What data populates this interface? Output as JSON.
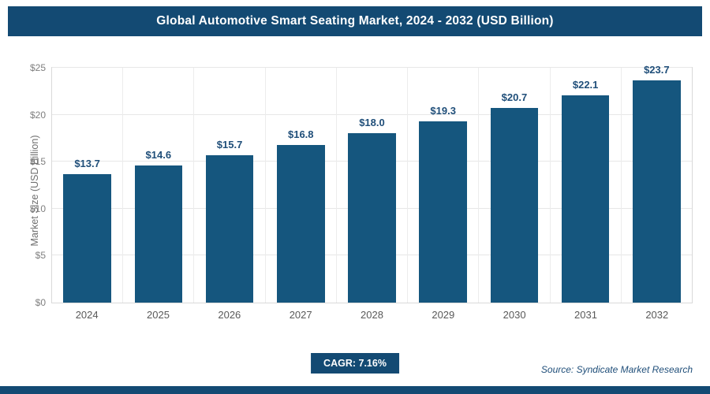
{
  "header": {
    "title": "Global Automotive Smart Seating Market, 2024 - 2032 (USD Billion)"
  },
  "chart_data": {
    "type": "bar",
    "title": "Global Automotive Smart Seating Market, 2024 - 2032 (USD Billion)",
    "categories": [
      "2024",
      "2025",
      "2026",
      "2027",
      "2028",
      "2029",
      "2030",
      "2031",
      "2032"
    ],
    "values": [
      13.7,
      14.6,
      15.7,
      16.8,
      18.0,
      19.3,
      20.7,
      22.1,
      23.7
    ],
    "data_labels": [
      "$13.7",
      "$14.6",
      "$15.7",
      "$16.8",
      "$18.0",
      "$19.3",
      "$20.7",
      "$22.1",
      "$23.7"
    ],
    "xlabel": "",
    "ylabel": "Market Size (USD Billion)",
    "ylim": [
      0,
      25
    ],
    "y_ticks": [
      {
        "value": 0,
        "label": "$0"
      },
      {
        "value": 5,
        "label": "$5"
      },
      {
        "value": 10,
        "label": "$10"
      },
      {
        "value": 15,
        "label": "$15"
      },
      {
        "value": 20,
        "label": "$20"
      },
      {
        "value": 25,
        "label": "$25"
      }
    ],
    "grid": true,
    "legend": false,
    "bar_color": "#15567e"
  },
  "footer": {
    "cagr_label": "CAGR: 7.16%",
    "source": "Source: Syndicate Market Research"
  },
  "colors": {
    "header_bg": "#134a73",
    "bar": "#15567e",
    "label_text": "#1f4e79",
    "tick_text": "#7f7f7f"
  }
}
